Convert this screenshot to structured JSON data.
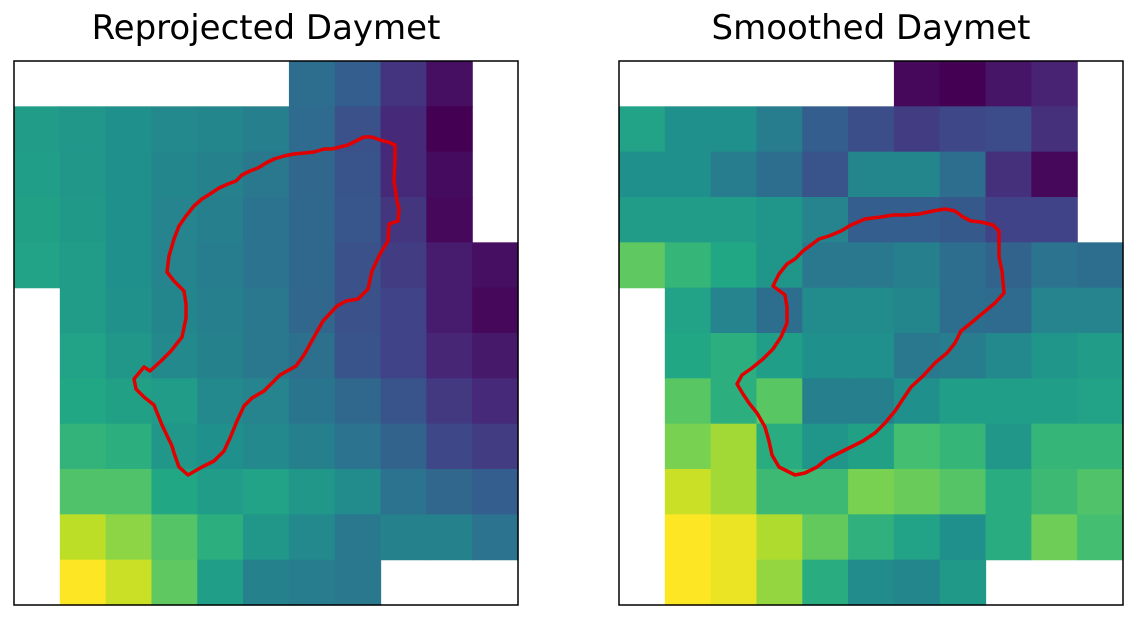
{
  "chart_data": [
    {
      "type": "heatmap",
      "title": "Reprojected Daymet",
      "colormap": "viridis",
      "n_rows": 12,
      "n_cols": 11,
      "value_range": [
        0,
        1
      ],
      "missing": null,
      "grid": false,
      "boundary_color": "#e00000",
      "values": [
        [
          null,
          null,
          null,
          null,
          null,
          null,
          0.36,
          0.3,
          0.15,
          0.04,
          null
        ],
        [
          0.55,
          0.53,
          0.5,
          0.47,
          0.46,
          0.43,
          0.35,
          0.25,
          0.12,
          0.0,
          null
        ],
        [
          0.56,
          0.53,
          0.5,
          0.46,
          0.44,
          0.4,
          0.33,
          0.26,
          0.12,
          0.03,
          null
        ],
        [
          0.57,
          0.54,
          0.5,
          0.45,
          0.43,
          0.38,
          0.34,
          0.27,
          0.16,
          0.02,
          null
        ],
        [
          0.58,
          0.55,
          0.5,
          0.45,
          0.42,
          0.38,
          0.34,
          0.25,
          0.18,
          0.08,
          0.04
        ],
        [
          null,
          0.55,
          0.51,
          0.46,
          0.43,
          0.4,
          0.33,
          0.25,
          0.2,
          0.08,
          0.02
        ],
        [
          null,
          0.58,
          0.53,
          0.47,
          0.44,
          0.4,
          0.37,
          0.26,
          0.2,
          0.11,
          0.07
        ],
        [
          null,
          0.6,
          0.57,
          0.55,
          0.47,
          0.45,
          0.39,
          0.34,
          0.26,
          0.17,
          0.12
        ],
        [
          null,
          0.65,
          0.63,
          0.53,
          0.5,
          0.47,
          0.43,
          0.38,
          0.32,
          0.22,
          0.18
        ],
        [
          null,
          0.72,
          0.72,
          0.6,
          0.55,
          0.58,
          0.53,
          0.48,
          0.38,
          0.33,
          0.3
        ],
        [
          null,
          0.9,
          0.83,
          0.73,
          0.63,
          0.53,
          0.47,
          0.4,
          0.44,
          0.44,
          0.38
        ],
        [
          null,
          1.0,
          0.92,
          0.75,
          0.56,
          0.44,
          0.42,
          0.4,
          null,
          null,
          null
        ]
      ]
    },
    {
      "type": "heatmap",
      "title": "Smoothed Daymet",
      "colormap": "viridis",
      "n_rows": 12,
      "n_cols": 11,
      "value_range": [
        0,
        1
      ],
      "missing": null,
      "grid": false,
      "boundary_color": "#e00000",
      "values": [
        [
          null,
          null,
          null,
          null,
          null,
          null,
          0.02,
          0.0,
          0.06,
          0.1,
          null
        ],
        [
          0.58,
          0.5,
          0.5,
          0.42,
          0.3,
          0.24,
          0.18,
          0.22,
          0.23,
          0.14,
          null
        ],
        [
          0.5,
          0.5,
          0.42,
          0.36,
          0.26,
          0.46,
          0.46,
          0.36,
          0.14,
          0.02,
          null
        ],
        [
          0.55,
          0.55,
          0.55,
          0.52,
          0.45,
          0.3,
          0.3,
          0.28,
          0.2,
          0.2,
          null
        ],
        [
          0.75,
          0.66,
          0.6,
          0.52,
          0.4,
          0.4,
          0.43,
          0.36,
          0.32,
          0.38,
          0.36
        ],
        [
          null,
          0.58,
          0.45,
          0.36,
          0.48,
          0.48,
          0.46,
          0.36,
          0.35,
          0.45,
          0.45
        ],
        [
          null,
          0.6,
          0.63,
          0.56,
          0.5,
          0.5,
          0.4,
          0.42,
          0.47,
          0.52,
          0.55
        ],
        [
          null,
          0.74,
          0.63,
          0.74,
          0.43,
          0.43,
          0.5,
          0.56,
          0.56,
          0.56,
          0.58
        ],
        [
          null,
          0.8,
          0.86,
          0.62,
          0.52,
          0.57,
          0.7,
          0.66,
          0.53,
          0.66,
          0.66
        ],
        [
          null,
          0.92,
          0.86,
          0.68,
          0.68,
          0.8,
          0.77,
          0.73,
          0.62,
          0.68,
          0.72
        ],
        [
          null,
          1.0,
          0.97,
          0.88,
          0.76,
          0.64,
          0.58,
          0.5,
          0.62,
          0.78,
          0.7
        ],
        [
          null,
          1.0,
          0.97,
          0.84,
          0.62,
          0.48,
          0.46,
          0.54,
          null,
          null,
          null
        ]
      ]
    }
  ]
}
